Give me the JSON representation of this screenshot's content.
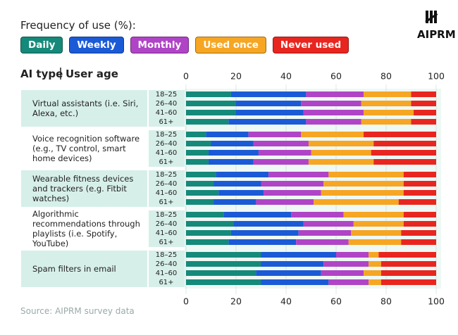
{
  "chart_data": {
    "type": "stacked-bar-horizontal",
    "title": "Frequency of use (%):",
    "logo": "AIPRM",
    "header_left": "AI type",
    "header_right": "User age",
    "source": "Source: AIPRM survey data",
    "groups": [
      "Virtual assistants (i.e. Siri, Alexa, etc.)",
      "Voice recognition software (e.g., TV control, smart home devices)",
      "Wearable fitness devices and trackers (e.g. Fitbit watches)",
      "Algorithmic recommendations through playlists (i.e. Spotify, YouTube)",
      "Spam filters in email"
    ],
    "categories": [
      "18–25",
      "26–40",
      "41–60",
      "61+",
      "18–25",
      "26–40",
      "41–60",
      "61+",
      "18–25",
      "26–40",
      "41–60",
      "61+",
      "18–25",
      "26–40",
      "41–60",
      "61+",
      "18–25",
      "26–40",
      "41–60",
      "61+"
    ],
    "series": [
      {
        "name": "Daily",
        "color": "#15897a",
        "values": [
          18,
          20,
          20,
          17,
          8,
          10,
          9,
          9,
          12,
          11,
          13,
          11,
          15,
          19,
          18,
          17,
          30,
          30,
          28,
          30
        ]
      },
      {
        "name": "Weekly",
        "color": "#1b5ad6",
        "values": [
          30,
          26,
          27,
          31,
          17,
          17,
          20,
          18,
          21,
          19,
          18,
          17,
          27,
          28,
          27,
          27,
          30,
          25,
          26,
          27
        ]
      },
      {
        "name": "Monthly",
        "color": "#b044c6",
        "values": [
          23,
          24,
          24,
          22,
          21,
          22,
          21,
          22,
          24,
          25,
          23,
          23,
          21,
          20,
          21,
          21,
          13,
          18,
          17,
          16
        ]
      },
      {
        "name": "Used once",
        "color": "#f6a623",
        "values": [
          19,
          20,
          20,
          20,
          25,
          26,
          24,
          26,
          30,
          32,
          33,
          34,
          24,
          20,
          20,
          21,
          4,
          5,
          7,
          5
        ]
      },
      {
        "name": "Never used",
        "color": "#e8261f",
        "values": [
          10,
          10,
          9,
          10,
          29,
          25,
          26,
          25,
          13,
          13,
          13,
          15,
          13,
          13,
          14,
          14,
          23,
          22,
          22,
          22
        ]
      }
    ],
    "xlim": [
      0,
      100
    ],
    "xticks": [
      0,
      20,
      40,
      60,
      80,
      100
    ],
    "grid": true
  }
}
